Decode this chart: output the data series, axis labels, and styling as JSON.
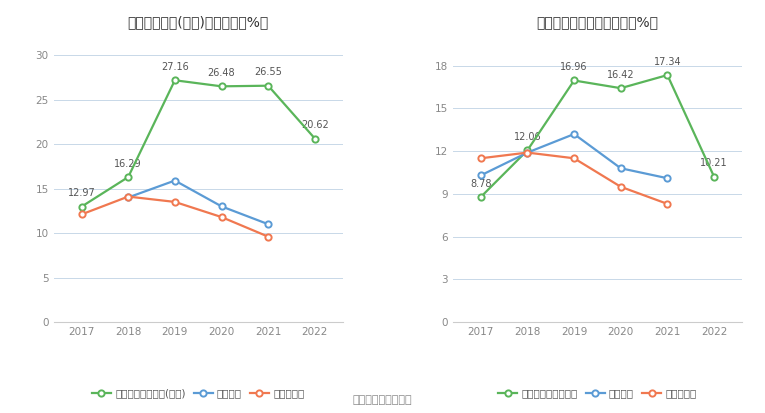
{
  "years": [
    2017,
    2018,
    2019,
    2020,
    2021,
    2022
  ],
  "chart1": {
    "title": "净资产收益率(加权)历年情况（%）",
    "company": [
      12.97,
      16.29,
      27.16,
      26.48,
      26.55,
      20.62
    ],
    "industry_avg": [
      null,
      14.0,
      15.9,
      13.0,
      11.0,
      null
    ],
    "industry_median": [
      12.1,
      14.1,
      13.5,
      11.8,
      9.6,
      null
    ],
    "company_label": "公司净资产收益率(加权)",
    "avg_label": "行业均值",
    "median_label": "行业中位数",
    "ylim": [
      0,
      32
    ],
    "yticks": [
      0,
      5,
      10,
      15,
      20,
      25,
      30
    ]
  },
  "chart2": {
    "title": "投入资本回报率历年情况（%）",
    "company": [
      8.78,
      12.06,
      16.96,
      16.42,
      17.34,
      10.21
    ],
    "industry_avg": [
      10.3,
      11.9,
      13.2,
      10.8,
      10.1,
      null
    ],
    "industry_median": [
      11.5,
      11.9,
      11.5,
      9.5,
      8.3,
      null
    ],
    "company_label": "公司投入资本回报率",
    "avg_label": "行业均值",
    "median_label": "行业中位数",
    "ylim": [
      0,
      20
    ],
    "yticks": [
      0,
      3,
      6,
      9,
      12,
      15,
      18
    ]
  },
  "colors": {
    "green": "#5ab55a",
    "blue": "#5b9bd5",
    "orange": "#f07850"
  },
  "source_text": "数据来源：恒生聚源",
  "bg_color": "#ffffff",
  "grid_color": "#c8d8e8",
  "annotation_color": "#555555"
}
